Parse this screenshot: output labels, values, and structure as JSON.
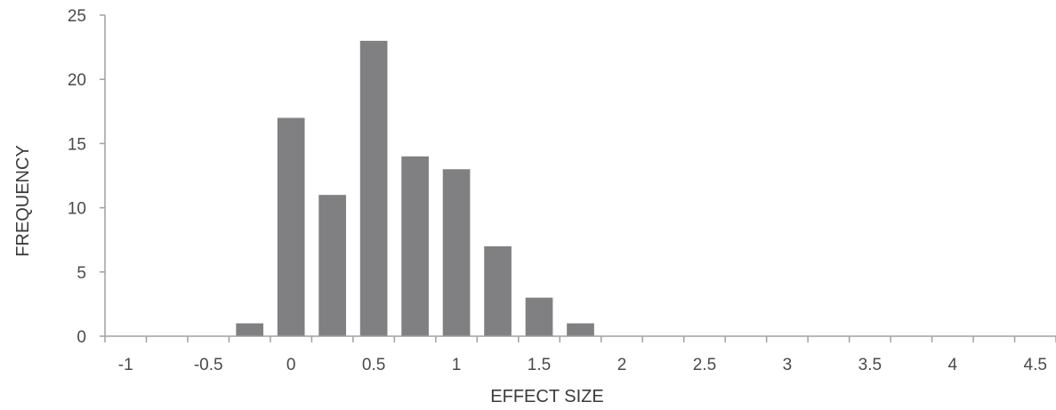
{
  "chart_data": {
    "type": "bar",
    "title": "",
    "xlabel": "EFFECT SIZE",
    "ylabel": "FREQUENCY",
    "bin_width": 0.25,
    "x": [
      -0.25,
      0,
      0.25,
      0.5,
      0.75,
      1,
      1.25,
      1.5,
      1.75
    ],
    "values": [
      1,
      17,
      11,
      23,
      14,
      13,
      7,
      3,
      1
    ],
    "xlim": [
      -1.125,
      4.625
    ],
    "ylim": [
      0,
      25
    ],
    "x_ticks": [
      -1,
      -0.5,
      0,
      0.5,
      1,
      1.5,
      2,
      2.5,
      3,
      3.5,
      4,
      4.5
    ],
    "x_tick_labels": [
      "-1",
      "-0.5",
      "0",
      "0.5",
      "1",
      "1.5",
      "2",
      "2.5",
      "3",
      "3.5",
      "4",
      "4.5"
    ],
    "y_ticks": [
      0,
      5,
      10,
      15,
      20,
      25
    ],
    "y_tick_labels": [
      "0",
      "5",
      "10",
      "15",
      "20",
      "25"
    ],
    "grid": false,
    "legend": "none",
    "bar_color": "#808083",
    "axis_color": "#a0a0a0"
  }
}
